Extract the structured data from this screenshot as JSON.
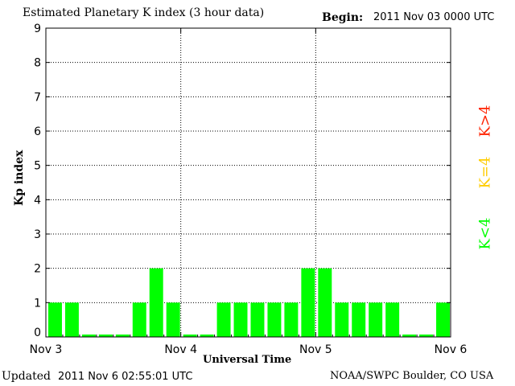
{
  "header": {
    "title": "Estimated Planetary K index (3 hour data)",
    "begin_label": "Begin:",
    "begin_value": "2011 Nov 03 0000 UTC"
  },
  "footer": {
    "updated_label": "Updated",
    "updated_value": "2011 Nov  6 02:55:01 UTC",
    "credit": "NOAA/SWPC Boulder, CO USA"
  },
  "legend": {
    "high": "K>4",
    "equal": "K=4",
    "low": "K<4"
  },
  "colors": {
    "low": "#00ff00",
    "equal": "#ffcc00",
    "high": "#ff2200"
  },
  "chart_data": {
    "type": "bar",
    "title": "Estimated Planetary K index (3 hour data)",
    "xlabel": "Universal Time",
    "ylabel": "Kp index",
    "ylim": [
      0,
      9
    ],
    "yticks": [
      0,
      1,
      2,
      3,
      4,
      5,
      6,
      7,
      8,
      9
    ],
    "xtick_labels": [
      "Nov 3",
      "Nov 4",
      "Nov 5",
      "Nov 6"
    ],
    "interval_hours": 3,
    "values": [
      1,
      1,
      0,
      0,
      0,
      1,
      2,
      1,
      0,
      0,
      1,
      1,
      1,
      1,
      1,
      2,
      2,
      1,
      1,
      1,
      1,
      0,
      0,
      1
    ],
    "grid": true
  }
}
